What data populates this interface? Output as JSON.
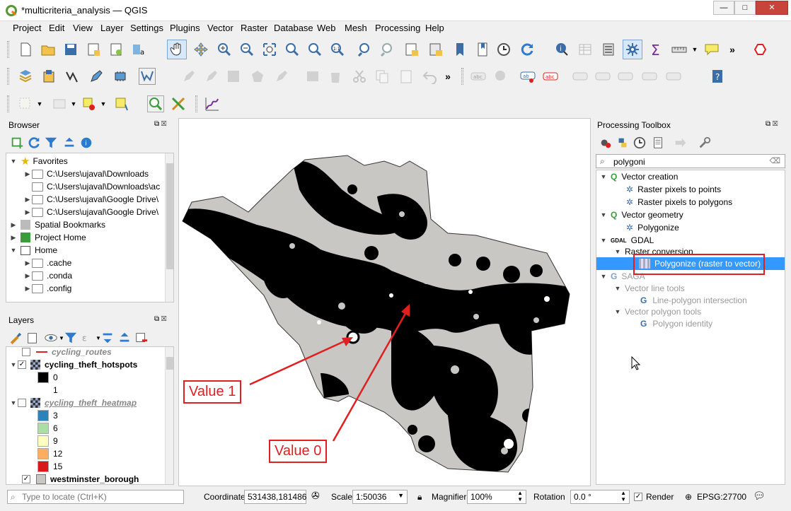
{
  "window": {
    "title": "*multicriteria_analysis — QGIS",
    "min": "—",
    "max": "□",
    "close": "✕"
  },
  "menu": [
    "Project",
    "Edit",
    "View",
    "Layer",
    "Settings",
    "Plugins",
    "Vector",
    "Raster",
    "Database",
    "Web",
    "Mesh",
    "Processing",
    "Help"
  ],
  "browser": {
    "title": "Browser",
    "items": [
      {
        "label": "Favorites",
        "indent": 0,
        "expanded": true,
        "icon": "star-icon"
      },
      {
        "label": "C:\\Users\\ujaval\\Downloads",
        "indent": 1,
        "icon": "folder-icon"
      },
      {
        "label": "C:\\Users\\ujaval\\Downloads\\ac",
        "indent": 1,
        "icon": "folder-icon"
      },
      {
        "label": "C:\\Users\\ujaval\\Google Drive\\",
        "indent": 1,
        "icon": "folder-icon"
      },
      {
        "label": "C:\\Users\\ujaval\\Google Drive\\",
        "indent": 1,
        "icon": "folder-icon"
      },
      {
        "label": "Spatial Bookmarks",
        "indent": 0,
        "icon": "bookmark-icon"
      },
      {
        "label": "Project Home",
        "indent": 0,
        "icon": "project-home-icon"
      },
      {
        "label": "Home",
        "indent": 0,
        "expanded": true,
        "icon": "home-icon"
      },
      {
        "label": ".cache",
        "indent": 1,
        "icon": "folder-icon"
      },
      {
        "label": ".conda",
        "indent": 1,
        "icon": "folder-icon"
      },
      {
        "label": ".config",
        "indent": 1,
        "icon": "folder-icon"
      }
    ]
  },
  "layers": {
    "title": "Layers",
    "items": [
      {
        "label": "cycling_routes",
        "style": "italic-cut"
      },
      {
        "label": "cycling_theft_hotspots",
        "checked": true,
        "style": "bold"
      },
      {
        "label": "0",
        "legend": "#000000"
      },
      {
        "label": "1",
        "legend": "#ffffff"
      },
      {
        "label": "cycling_theft_heatmap",
        "checked": false,
        "style": "italic"
      },
      {
        "label": "3",
        "legend": "#2b83ba"
      },
      {
        "label": "6",
        "legend": "#abdda4"
      },
      {
        "label": "9",
        "legend": "#ffffbf"
      },
      {
        "label": "12",
        "legend": "#fdae61"
      },
      {
        "label": "15",
        "legend": "#d7191c"
      },
      {
        "label": "westminster_borough",
        "checked": true,
        "style": "bold",
        "legend": "#c8c7c3"
      }
    ]
  },
  "toolbox": {
    "title": "Processing Toolbox",
    "search_value": "polygoni",
    "items": [
      {
        "label": "Vector creation",
        "indent": 0,
        "group": true
      },
      {
        "label": "Raster pixels to points",
        "indent": 1
      },
      {
        "label": "Raster pixels to polygons",
        "indent": 1
      },
      {
        "label": "Vector geometry",
        "indent": 0,
        "group": true
      },
      {
        "label": "Polygonize",
        "indent": 1
      },
      {
        "label": "GDAL",
        "indent": 0,
        "group": true
      },
      {
        "label": "Raster conversion",
        "indent": 1,
        "subgroup": true
      },
      {
        "label": "Polygonize (raster to vector)",
        "indent": 2,
        "selected": true
      },
      {
        "label": "SAGA",
        "indent": 0,
        "group": true,
        "greyed": true
      },
      {
        "label": "Vector line tools",
        "indent": 1,
        "subgroup": true,
        "greyed": true
      },
      {
        "label": "Line-polygon intersection",
        "indent": 2,
        "greyed": true
      },
      {
        "label": "Vector polygon tools",
        "indent": 1,
        "subgroup": true,
        "greyed": true
      },
      {
        "label": "Polygon identity",
        "indent": 2,
        "greyed": true
      }
    ]
  },
  "annotations": {
    "value1": "Value 1",
    "value0": "Value 0"
  },
  "status": {
    "locate_placeholder": "Type to locate (Ctrl+K)",
    "coordinate_label": "Coordinate",
    "coordinate_value": "531438,181486",
    "scale_label": "Scale",
    "scale_value": "1:50036",
    "magnifier_label": "Magnifier",
    "magnifier_value": "100%",
    "rotation_label": "Rotation",
    "rotation_value": "0.0 °",
    "render_label": "Render",
    "crs": "EPSG:27700"
  },
  "colors": {
    "accent": "#3399ff",
    "annotation": "#e02020",
    "polygon": "#c8c7c3",
    "hotspot": "#000000"
  }
}
